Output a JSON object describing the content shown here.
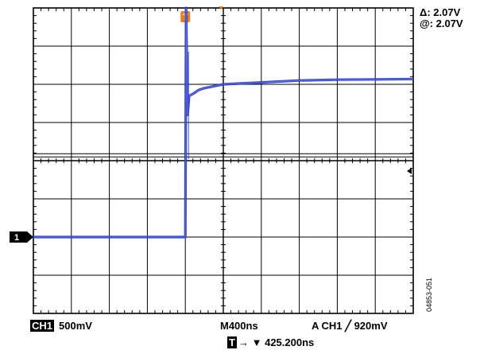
{
  "chart_data": {
    "type": "line",
    "title": "",
    "xlabel": "",
    "ylabel": "",
    "x_divisions": 10,
    "y_divisions": 8,
    "time_per_div_ns": 400,
    "volts_per_div_mV": 500,
    "trigger_div": 4.0,
    "series": [
      {
        "color": "#2233cc",
        "x_div": [
          0,
          4.0,
          4.02,
          4.06,
          4.1,
          4.2,
          4.35,
          4.5,
          5,
          6,
          7,
          8,
          9,
          10
        ],
        "y_div": [
          0.0,
          0.0,
          6.0,
          3.2,
          3.7,
          3.75,
          3.85,
          3.9,
          4.0,
          4.05,
          4.1,
          4.12,
          4.13,
          4.14
        ]
      }
    ]
  },
  "readouts": {
    "delta": "Δ: 2.07V",
    "at": "@: 2.07V",
    "ch_badge": "CH1",
    "scale": "500mV",
    "timebase": "M400ns",
    "trigger": "A  CH1  ╱  920mV",
    "t_badge": "T",
    "position": "→ ▼ 425.200ns",
    "figure_id": "04853-051"
  },
  "markers": {
    "channel_label": "1",
    "trigger_label": "T",
    "colors": {
      "trigger": "#f07d1a",
      "trace": "#2233cc",
      "channel": "#000000"
    }
  }
}
